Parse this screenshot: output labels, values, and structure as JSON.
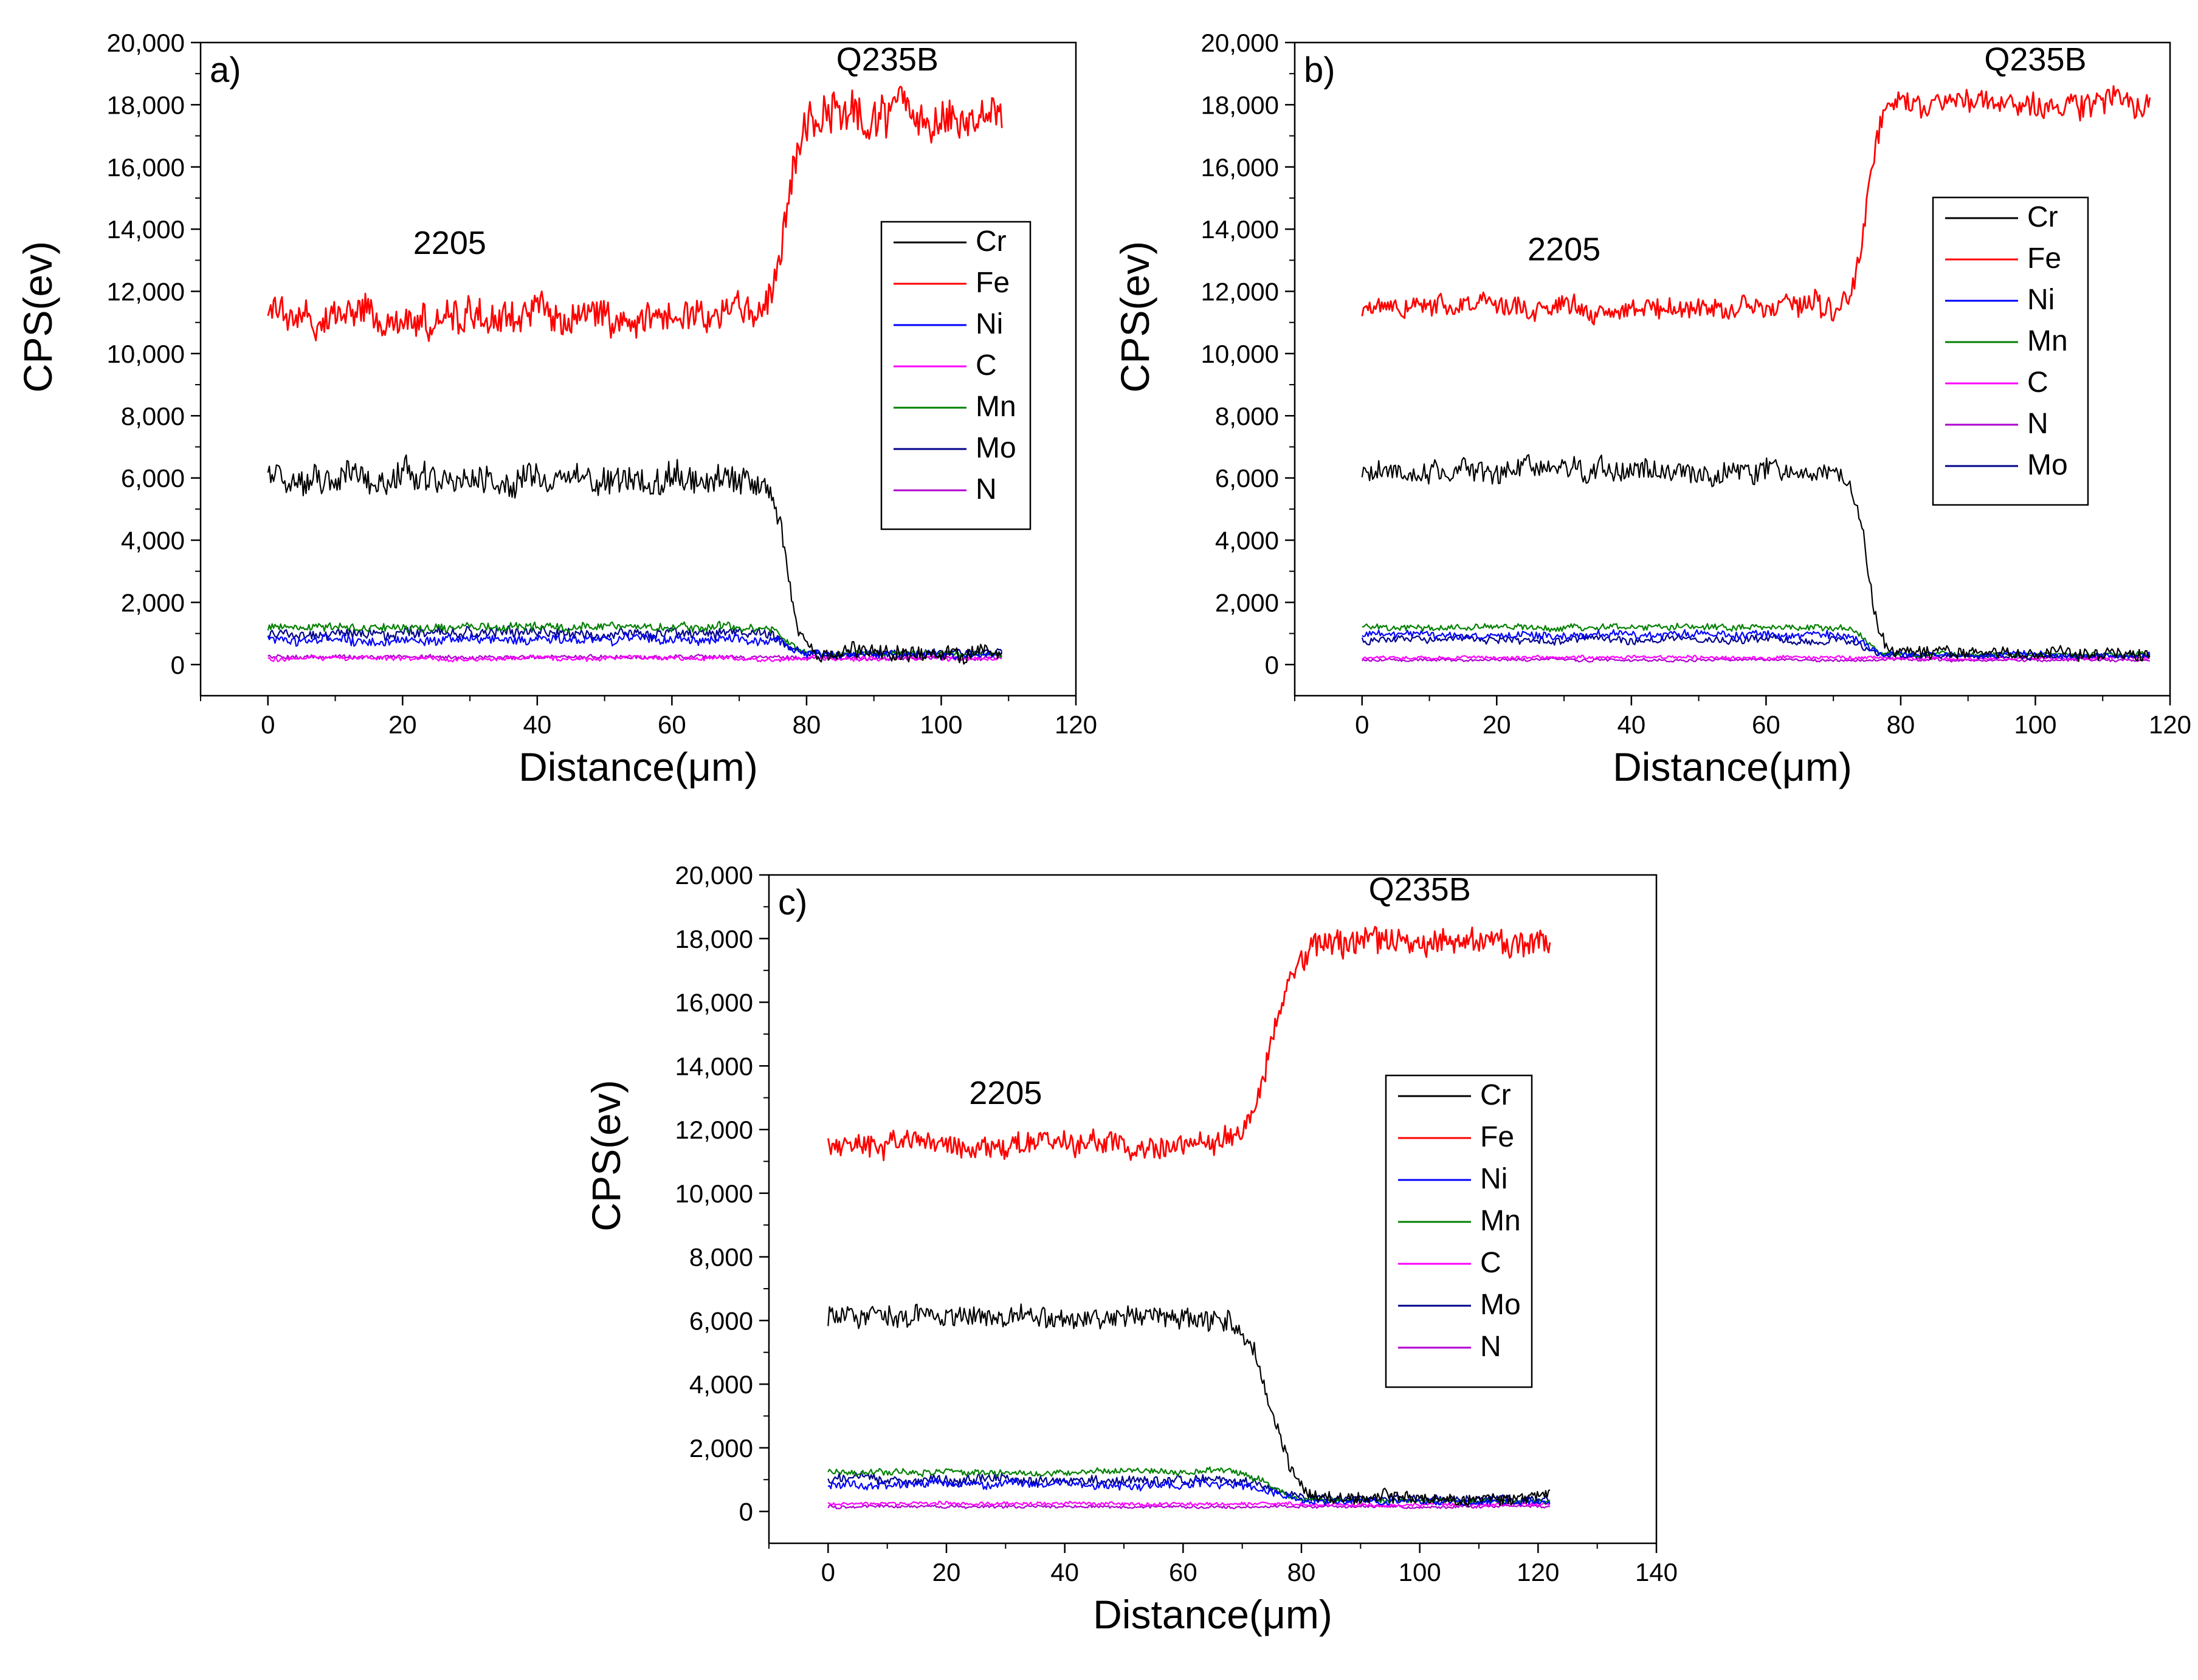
{
  "figure": {
    "description_note": "Three EDS line-scan panels across a 2205/Q235B interface",
    "colors": {
      "Cr": "#000000",
      "Fe": "#ff0000",
      "Ni": "#0000ff",
      "C": "#ff00ff",
      "Mn": "#008000",
      "Mo": "#00008b",
      "N": "#b000d0"
    }
  },
  "chart_data": [
    {
      "type": "line",
      "panel": "a)",
      "xlabel": "Distance(μm)",
      "ylabel": "CPS(ev)",
      "xlim": [
        -10,
        120
      ],
      "ylim": [
        -1000,
        20000
      ],
      "x_ticks": [
        0,
        20,
        40,
        60,
        80,
        100,
        120
      ],
      "y_ticks": [
        0,
        2000,
        4000,
        6000,
        8000,
        10000,
        12000,
        14000,
        16000,
        18000,
        20000
      ],
      "y_tick_labels": [
        "0",
        "2,000",
        "4,000",
        "6,000",
        "8,000",
        "10,000",
        "12,000",
        "14,000",
        "16,000",
        "18,000",
        "20,000"
      ],
      "x_tick_labels": [
        "0",
        "20",
        "40",
        "60",
        "80",
        "100",
        "120"
      ],
      "x_end": 109,
      "transition_um": 77,
      "transition_width_um": 3,
      "annotations": [
        {
          "text": "2205",
          "x": 27,
          "y": 13200
        },
        {
          "text": "Q235B",
          "x": 92,
          "y": 19100
        }
      ],
      "legend": [
        "Cr",
        "Fe",
        "Ni",
        "C",
        "Mn",
        "Mo",
        "N"
      ],
      "series": [
        {
          "name": "Cr",
          "before": 6000,
          "after": 380,
          "noise": 420
        },
        {
          "name": "Fe",
          "before": 11200,
          "after": 17600,
          "noise": 600
        },
        {
          "name": "Ni",
          "before": 800,
          "after": 320,
          "noise": 140
        },
        {
          "name": "C",
          "before": 200,
          "after": 200,
          "noise": 70
        },
        {
          "name": "Mn",
          "before": 1200,
          "after": 350,
          "noise": 120
        },
        {
          "name": "Mo",
          "before": 1000,
          "after": 360,
          "noise": 150
        },
        {
          "name": "N",
          "before": 250,
          "after": 200,
          "noise": 60
        }
      ]
    },
    {
      "type": "line",
      "panel": "b)",
      "xlabel": "Distance(μm)",
      "ylabel": "CPS(ev)",
      "xlim": [
        -10,
        120
      ],
      "ylim": [
        -1000,
        20000
      ],
      "x_ticks": [
        0,
        20,
        40,
        60,
        80,
        100,
        120
      ],
      "y_ticks": [
        0,
        2000,
        4000,
        6000,
        8000,
        10000,
        12000,
        14000,
        16000,
        18000,
        20000
      ],
      "y_tick_labels": [
        "0",
        "2,000",
        "4,000",
        "6,000",
        "8,000",
        "10,000",
        "12,000",
        "14,000",
        "16,000",
        "18,000",
        "20,000"
      ],
      "x_tick_labels": [
        "0",
        "20",
        "40",
        "60",
        "80",
        "100",
        "120"
      ],
      "x_end": 117,
      "transition_um": 75,
      "transition_width_um": 3,
      "annotations": [
        {
          "text": "2205",
          "x": 30,
          "y": 13000
        },
        {
          "text": "Q235B",
          "x": 100,
          "y": 19100
        }
      ],
      "legend": [
        "Cr",
        "Fe",
        "Ni",
        "Mn",
        "C",
        "N",
        "Mo"
      ],
      "series": [
        {
          "name": "Cr",
          "before": 6200,
          "after": 360,
          "noise": 320
        },
        {
          "name": "Fe",
          "before": 11500,
          "after": 18000,
          "noise": 380
        },
        {
          "name": "Ni",
          "before": 950,
          "after": 300,
          "noise": 120
        },
        {
          "name": "Mn",
          "before": 1200,
          "after": 330,
          "noise": 90
        },
        {
          "name": "C",
          "before": 220,
          "after": 200,
          "noise": 50
        },
        {
          "name": "N",
          "before": 150,
          "after": 150,
          "noise": 40
        },
        {
          "name": "Mo",
          "before": 800,
          "after": 300,
          "noise": 110
        }
      ]
    },
    {
      "type": "line",
      "panel": "c)",
      "xlabel": "Distance(μm)",
      "ylabel": "CPS(ev)",
      "xlim": [
        -10,
        140
      ],
      "ylim": [
        -1000,
        20000
      ],
      "x_ticks": [
        0,
        20,
        40,
        60,
        80,
        100,
        120,
        140
      ],
      "y_ticks": [
        0,
        2000,
        4000,
        6000,
        8000,
        10000,
        12000,
        14000,
        16000,
        18000,
        20000
      ],
      "y_tick_labels": [
        "0",
        "2,000",
        "4,000",
        "6,000",
        "8,000",
        "10,000",
        "12,000",
        "14,000",
        "16,000",
        "18,000",
        "20,000"
      ],
      "x_tick_labels": [
        "0",
        "20",
        "40",
        "60",
        "80",
        "100",
        "120",
        "140"
      ],
      "x_end": 122,
      "transition_um": 75,
      "transition_width_um": 6,
      "annotations": [
        {
          "text": "2205",
          "x": 30,
          "y": 12800
        },
        {
          "text": "Q235B",
          "x": 100,
          "y": 19200
        }
      ],
      "legend": [
        "Cr",
        "Fe",
        "Ni",
        "Mn",
        "C",
        "Mo",
        "N"
      ],
      "series": [
        {
          "name": "Cr",
          "before": 6100,
          "after": 380,
          "noise": 300
        },
        {
          "name": "Fe",
          "before": 11500,
          "after": 17900,
          "noise": 380
        },
        {
          "name": "Ni",
          "before": 850,
          "after": 300,
          "noise": 120
        },
        {
          "name": "Mn",
          "before": 1250,
          "after": 330,
          "noise": 90
        },
        {
          "name": "C",
          "before": 250,
          "after": 220,
          "noise": 50
        },
        {
          "name": "Mo",
          "before": 1000,
          "after": 380,
          "noise": 140
        },
        {
          "name": "N",
          "before": 150,
          "after": 150,
          "noise": 40
        }
      ]
    }
  ]
}
